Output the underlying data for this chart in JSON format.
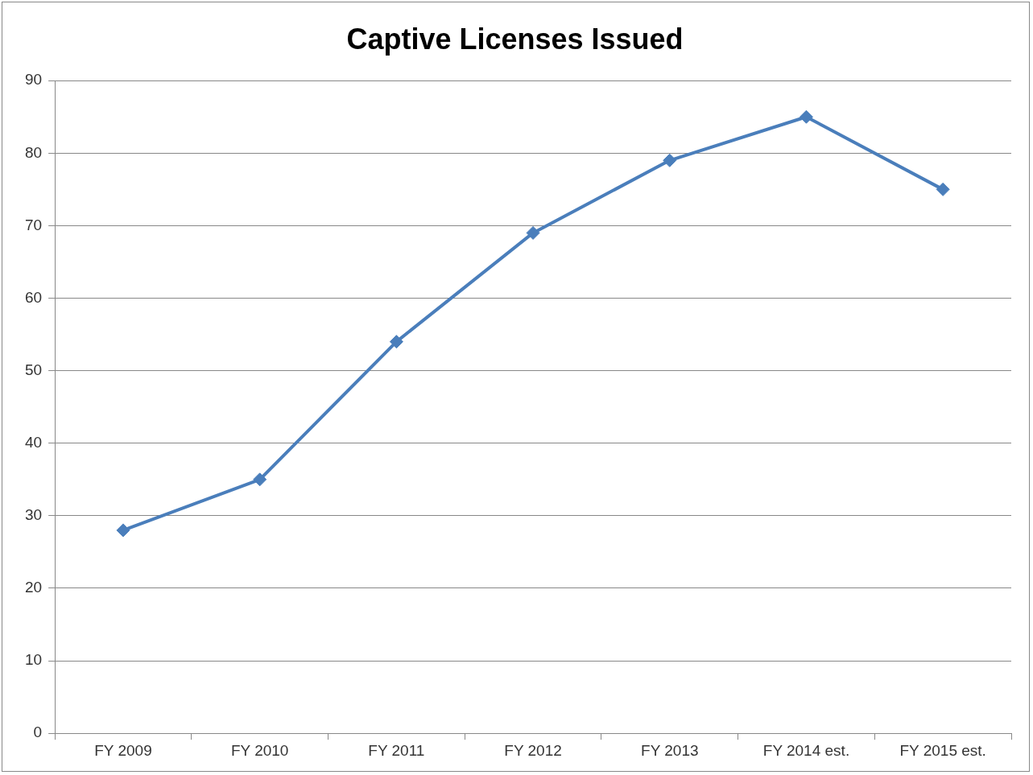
{
  "chart_data": {
    "type": "line",
    "title": "Captive Licenses Issued",
    "categories": [
      "FY 2009",
      "FY 2010",
      "FY 2011",
      "FY 2012",
      "FY 2013",
      "FY 2014 est.",
      "FY 2015 est."
    ],
    "series": [
      {
        "color": "#4a7ebb",
        "values": [
          28,
          35,
          54,
          69,
          79,
          85,
          75
        ]
      }
    ],
    "ylim": [
      0,
      90
    ],
    "yticks": [
      0,
      10,
      20,
      30,
      40,
      50,
      60,
      70,
      80,
      90
    ],
    "grid": "y",
    "legend": false,
    "marker": "diamond",
    "line_style": "solid"
  }
}
